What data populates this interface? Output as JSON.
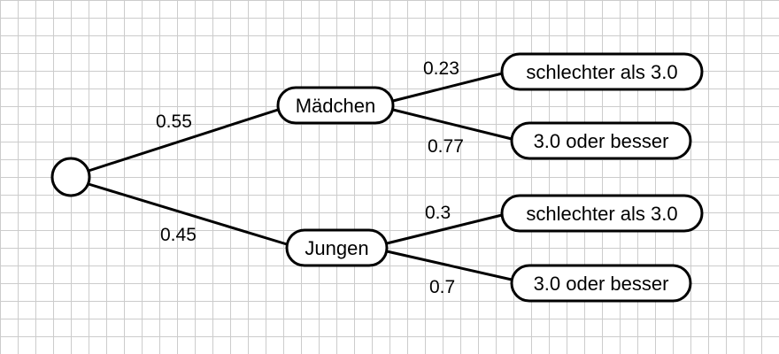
{
  "root": {},
  "level1": [
    {
      "label": "Mädchen",
      "prob": "0.55"
    },
    {
      "label": "Jungen",
      "prob": "0.45"
    }
  ],
  "level2": [
    {
      "label": "schlechter als 3.0",
      "prob": "0.23"
    },
    {
      "label": "3.0 oder besser",
      "prob": "0.77"
    },
    {
      "label": "schlechter als 3.0",
      "prob": "0.3"
    },
    {
      "label": "3.0 oder besser",
      "prob": "0.7"
    }
  ],
  "colors": {
    "grid": "#cccccc",
    "stroke": "#000000",
    "background": "#ffffff"
  }
}
